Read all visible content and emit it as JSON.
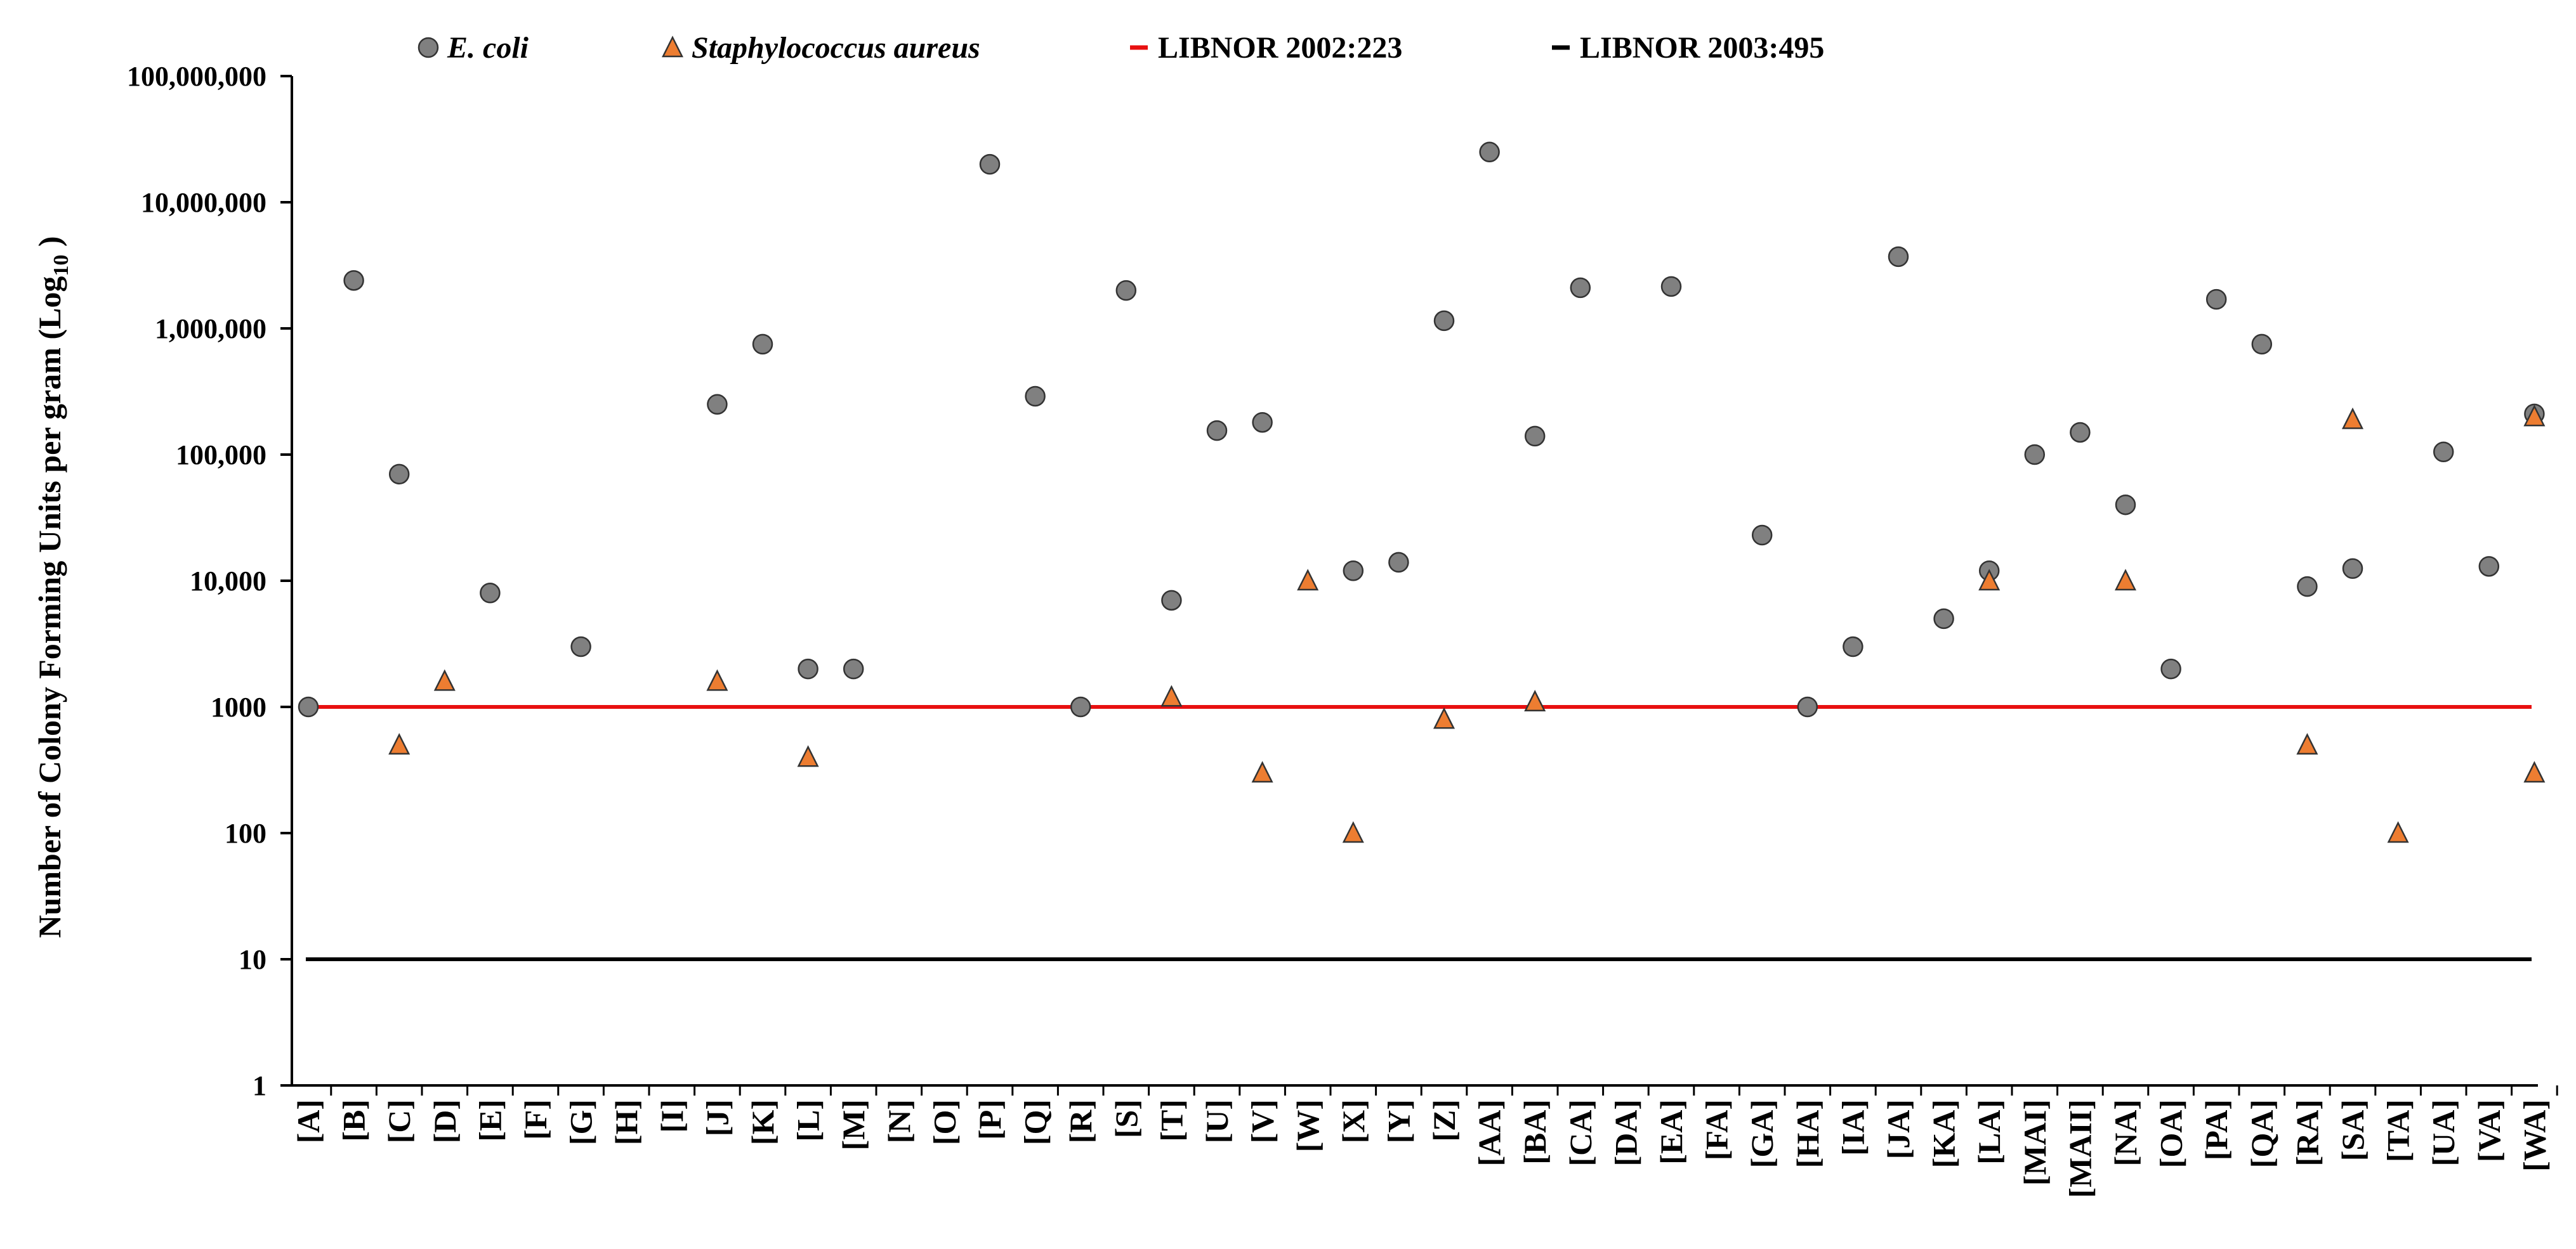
{
  "chart_data": {
    "type": "scatter",
    "y_scale": "log10",
    "ylim": [
      1,
      100000000
    ],
    "ylabel_main": "Number of Colony Forming Units per gram (Log",
    "ylabel_sub": "10",
    "ylabel_end": " )",
    "y_ticks": [
      {
        "value": 1,
        "label": "1"
      },
      {
        "value": 10,
        "label": "10"
      },
      {
        "value": 100,
        "label": "100"
      },
      {
        "value": 1000,
        "label": "1000"
      },
      {
        "value": 10000,
        "label": "10,000"
      },
      {
        "value": 100000,
        "label": "100,000"
      },
      {
        "value": 1000000,
        "label": "1,000,000"
      },
      {
        "value": 10000000,
        "label": "10,000,000"
      },
      {
        "value": 100000000,
        "label": "100,000,000"
      }
    ],
    "categories": [
      "[A]",
      "[B]",
      "[C]",
      "[D]",
      "[E]",
      "[F]",
      "[G]",
      "[H]",
      "[I]",
      "[J]",
      "[K]",
      "[L]",
      "[M]",
      "[N]",
      "[O]",
      "[P]",
      "[Q]",
      "[R]",
      "[S]",
      "[T]",
      "[U]",
      "[V]",
      "[W]",
      "[X]",
      "[Y]",
      "[Z]",
      "[AA]",
      "[BA]",
      "[CA]",
      "[DA]",
      "[EA]",
      "[FA]",
      "[GA]",
      "[HA]",
      "[IA]",
      "[JA]",
      "[KA]",
      "[LA]",
      "[MAI]",
      "[MAII]",
      "[NA]",
      "[OA]",
      "[PA]",
      "[QA]",
      "[RA]",
      "[SA]",
      "[TA]",
      "[UA]",
      "[VA]",
      "[WA]"
    ],
    "series": [
      {
        "name": "E. coli",
        "marker": "circle",
        "color": "#808080",
        "values": [
          1000,
          2400000,
          70000,
          null,
          8000,
          null,
          3000,
          null,
          null,
          250000,
          750000,
          2000,
          2000,
          null,
          null,
          20000000,
          290000,
          1000,
          2000000,
          7000,
          155000,
          180000,
          null,
          12000,
          14000,
          1150000,
          25000000,
          140000,
          2100000,
          null,
          2150000,
          null,
          23000,
          1000,
          3000,
          3700000,
          5000,
          12000,
          100000,
          150000,
          40000,
          2000,
          1700000,
          750000,
          9000,
          12500,
          null,
          105000,
          13000,
          210000
        ]
      },
      {
        "name": "Staphylococcus aureus",
        "marker": "triangle",
        "color": "#ED7D31",
        "values": [
          null,
          null,
          500,
          1600,
          null,
          null,
          null,
          null,
          null,
          1600,
          null,
          400,
          null,
          null,
          null,
          null,
          null,
          null,
          null,
          1200,
          null,
          300,
          10000,
          100,
          null,
          800,
          null,
          1100,
          null,
          null,
          null,
          null,
          null,
          null,
          null,
          null,
          null,
          10000,
          null,
          null,
          10000,
          null,
          null,
          null,
          500,
          190000,
          100,
          null,
          null,
          200000
        ]
      },
      {
        "name": "LIBNOR 2002:223",
        "type": "hline",
        "color": "#E81010",
        "value": 1000
      },
      {
        "name": "LIBNOR 2003:495",
        "type": "hline",
        "color": "#000000",
        "value": 10
      }
    ],
    "extra_points": [
      {
        "series": "Staphylococcus aureus",
        "category": "[WA]",
        "value": 300
      }
    ],
    "legend_position": "top",
    "grid": false
  }
}
